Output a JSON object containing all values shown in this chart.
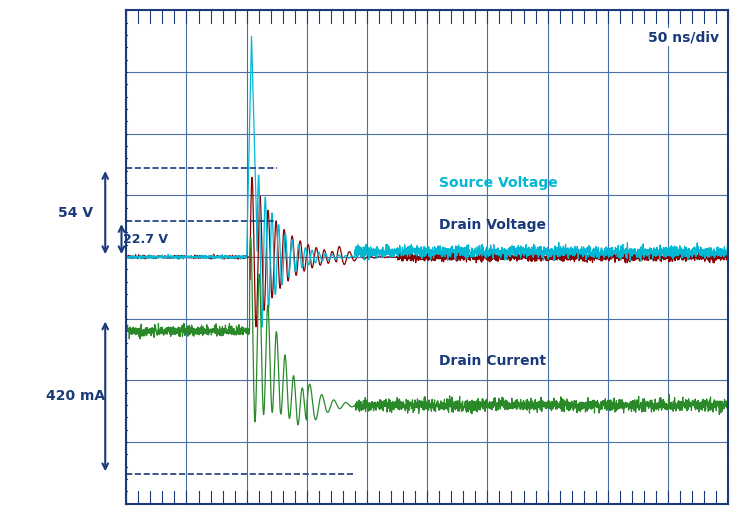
{
  "background_color": "#ffffff",
  "plot_bg_color": "#ffffff",
  "grid_color": "#4a6fa5",
  "border_color": "#1a3a7a",
  "text_color": "#1a3a7a",
  "time_label": "50 ns/div",
  "source_voltage_color": "#00b8d4",
  "drain_voltage_color": "#8b0000",
  "drain_current_color": "#2a8a2a",
  "source_voltage_label": "Source Voltage",
  "drain_voltage_label": "Drain Voltage",
  "drain_current_label": "Drain Current",
  "label_54v": "54 V",
  "label_227v": "22.7 V",
  "label_420ma": "420 mA"
}
